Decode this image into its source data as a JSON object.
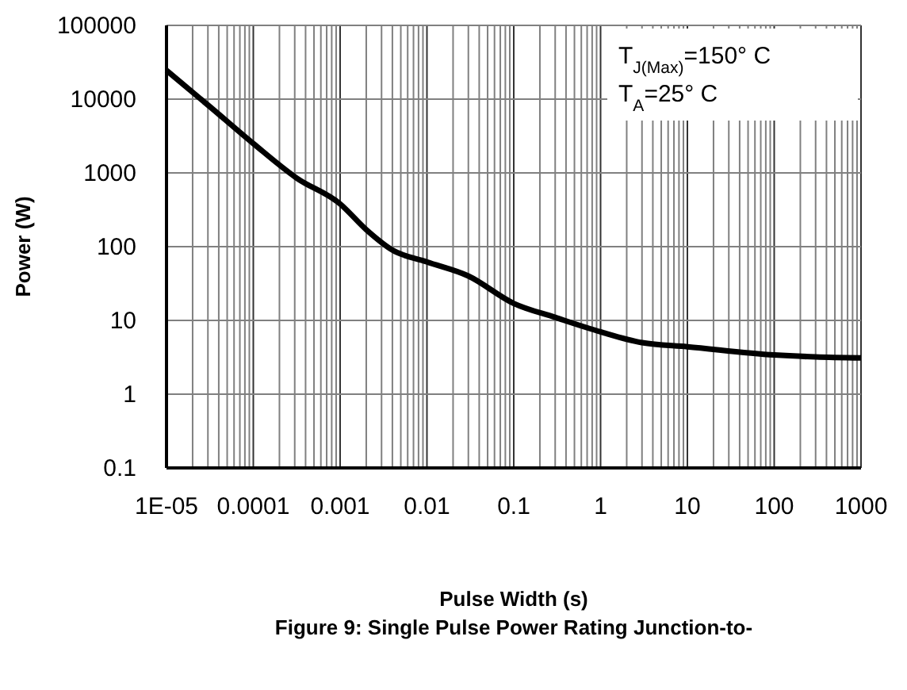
{
  "chart_data": {
    "type": "line",
    "xlabel": "Pulse Width (s)",
    "ylabel": "Power (W)",
    "log": "xy",
    "grid": true,
    "marker": "none",
    "line_style": "solid",
    "x": [
      1e-05,
      3.16e-05,
      0.0001,
      0.000316,
      0.001,
      0.002,
      0.004,
      0.01,
      0.03,
      0.1,
      0.3,
      1,
      3,
      10,
      100,
      300,
      1000
    ],
    "series": [
      {
        "color": "#000000",
        "values": [
          24500,
          7900,
          2500,
          850,
          380,
          170,
          90,
          62,
          40,
          17,
          11,
          7,
          5,
          4.4,
          3.4,
          3.2,
          3.1
        ]
      }
    ],
    "xlim": [
      1e-05,
      1000
    ],
    "ylim": [
      0.1,
      100000
    ],
    "xticks": [
      {
        "value": 1e-05,
        "label": "1E-05"
      },
      {
        "value": 0.0001,
        "label": "0.0001"
      },
      {
        "value": 0.001,
        "label": "0.001"
      },
      {
        "value": 0.01,
        "label": "0.01"
      },
      {
        "value": 0.1,
        "label": "0.1"
      },
      1,
      10,
      100,
      1000
    ],
    "yticks": [
      0.1,
      1,
      10,
      100,
      1000,
      10000,
      100000
    ],
    "annotations": [
      "T$_{J(Max)}$=150° C\nT$_{A}$=25° C",
      "Figure 9: Single Pulse Power Rating Junction-to-"
    ]
  }
}
